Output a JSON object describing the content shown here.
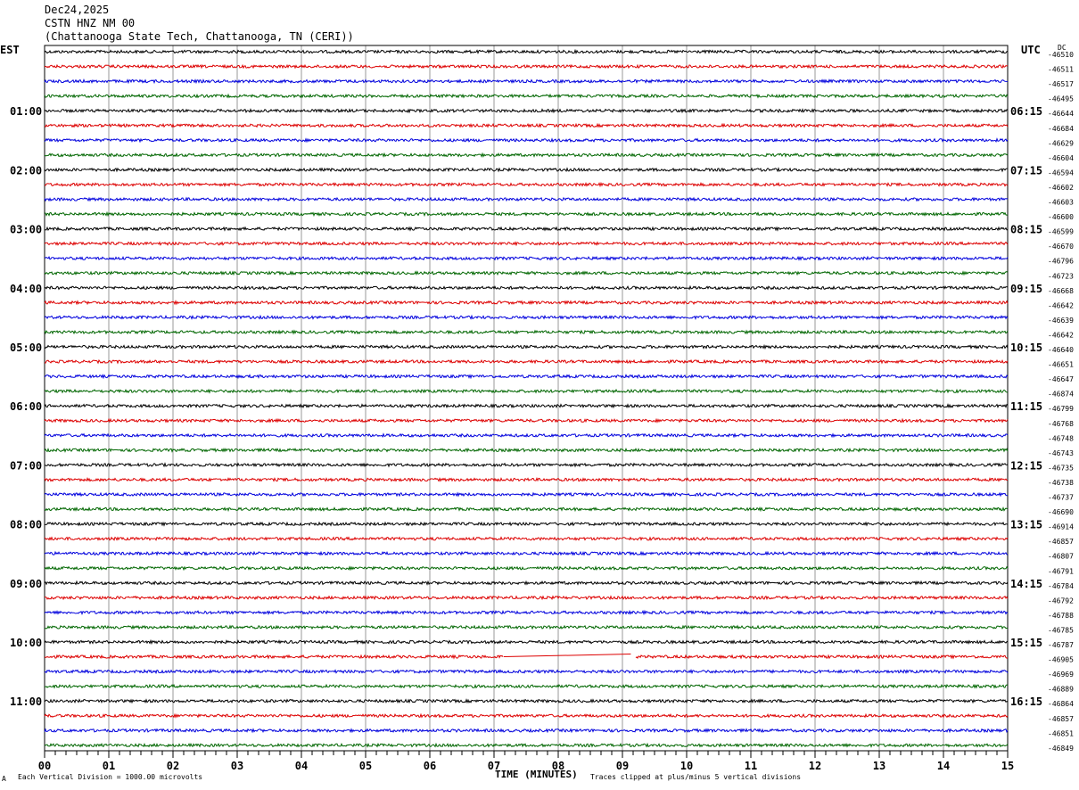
{
  "header": {
    "date": "Dec24,2025",
    "station": "CSTN HNZ NM 00",
    "location": "(Chattanooga State Tech, Chattanooga, TN (CERI))"
  },
  "left_tz": "EST",
  "right_tz": "UTC",
  "dc_label": "DC",
  "footer": {
    "scale": "Each Vertical Division = 1000.00 microvolts",
    "clip": "Traces clipped at plus/minus 5 vertical divisions",
    "corner": "A"
  },
  "chart_data": {
    "type": "line",
    "title": "",
    "xlabel": "TIME (MINUTES)",
    "xlim": [
      0,
      15
    ],
    "x_ticks": [
      "00",
      "01",
      "02",
      "03",
      "04",
      "05",
      "06",
      "07",
      "08",
      "09",
      "10",
      "11",
      "12",
      "13",
      "14",
      "15"
    ],
    "left_hour_labels": [
      "01:00",
      "02:00",
      "03:00",
      "04:00",
      "05:00",
      "06:00",
      "07:00",
      "08:00",
      "09:00",
      "10:00",
      "11:00"
    ],
    "right_hour_labels": [
      "06:15",
      "07:15",
      "08:15",
      "09:15",
      "10:15",
      "11:15",
      "12:15",
      "13:15",
      "14:15",
      "15:15",
      "16:15"
    ],
    "trace_colors": [
      "#000000",
      "#dd0000",
      "#0000dd",
      "#006600"
    ],
    "dc_offsets": [
      -46510,
      -46511,
      -46517,
      -46495,
      -46644,
      -46684,
      -46629,
      -46604,
      -46594,
      -46602,
      -46603,
      -46600,
      -46599,
      -46670,
      -46796,
      -46723,
      -46668,
      -46642,
      -46639,
      -46642,
      -46640,
      -46651,
      -46647,
      -46874,
      -46799,
      -46768,
      -46748,
      -46743,
      -46735,
      -46738,
      -46737,
      -46690,
      -46914,
      -46857,
      -46807,
      -46791,
      -46784,
      -46792,
      -46788,
      -46785,
      -46787,
      -46905,
      -46969,
      -46889,
      -46864,
      -46857,
      -46851,
      -46849
    ],
    "data_gap": {
      "trace_index": 41,
      "start_min": 7.15,
      "end_min": 9.2
    }
  }
}
